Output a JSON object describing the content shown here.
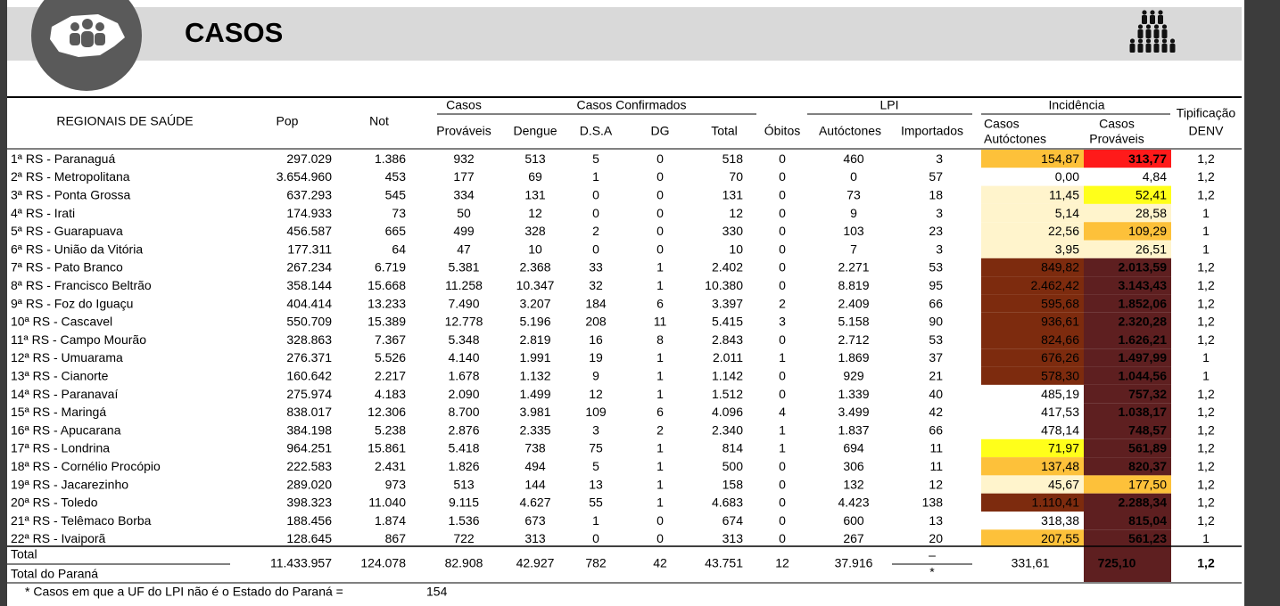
{
  "header": {
    "title": "CASOS"
  },
  "table": {
    "headings": [
      [
        "REGIONAIS DE SAÚDE"
      ],
      [
        "Pop"
      ],
      [
        "Not"
      ],
      [
        "Casos"
      ],
      [
        "Casos Confirmados"
      ],
      [
        "Óbitos"
      ],
      [
        "LPI"
      ],
      [
        "Incidência"
      ],
      [
        "Tipificação",
        "DENV"
      ],
      [
        "Prováveis"
      ],
      [
        "Dengue"
      ],
      [
        "D.S.A"
      ],
      [
        "DG"
      ],
      [
        "Total"
      ],
      [
        "Autóctones"
      ],
      [
        "Importados"
      ],
      [
        "Casos",
        "Autóctones"
      ],
      [
        "Casos",
        "Prováveis"
      ]
    ],
    "rows": [
      {
        "cells": [
          "1ª RS - Paranaguá",
          "297.029",
          "1.386",
          "932",
          "513",
          "5",
          "0",
          "518",
          "0",
          "460",
          "3",
          "154,87",
          "313,77",
          "1,2"
        ],
        "fills": [
          "#fdc13a",
          "#ff1a1a"
        ]
      },
      {
        "cells": [
          "2ª RS - Metropolitana",
          "3.654.960",
          "453",
          "177",
          "69",
          "1",
          "0",
          "70",
          "0",
          "0",
          "57",
          "0,00",
          "4,84",
          "1,2"
        ],
        "fills": [
          "#ffffff",
          "#ffffff"
        ]
      },
      {
        "cells": [
          "3ª RS - Ponta Grossa",
          "637.293",
          "545",
          "334",
          "131",
          "0",
          "0",
          "131",
          "0",
          "73",
          "18",
          "11,45",
          "52,41",
          "1,2"
        ],
        "fills": [
          "#fff4cc",
          "#ffff1a"
        ]
      },
      {
        "cells": [
          "4ª RS - Irati",
          "174.933",
          "73",
          "50",
          "12",
          "0",
          "0",
          "12",
          "0",
          "9",
          "3",
          "5,14",
          "28,58",
          "1"
        ],
        "fills": [
          "#fff4cc",
          "#fff4cc"
        ]
      },
      {
        "cells": [
          "5ª RS - Guarapuava",
          "456.587",
          "665",
          "499",
          "328",
          "2",
          "0",
          "330",
          "0",
          "103",
          "23",
          "22,56",
          "109,29",
          "1"
        ],
        "fills": [
          "#fff4cc",
          "#fdc13a"
        ]
      },
      {
        "cells": [
          "6ª RS - União da Vitória",
          "177.311",
          "64",
          "47",
          "10",
          "0",
          "0",
          "10",
          "0",
          "7",
          "3",
          "3,95",
          "26,51",
          "1"
        ],
        "fills": [
          "#fff4cc",
          "#fff4cc"
        ]
      },
      {
        "cells": [
          "7ª RS - Pato Branco",
          "267.234",
          "6.719",
          "5.381",
          "2.368",
          "33",
          "1",
          "2.402",
          "0",
          "2.271",
          "53",
          "849,82",
          "2.013,59",
          "1,2"
        ],
        "fills": [
          "#7d2b0e",
          "#5e1f20"
        ]
      },
      {
        "cells": [
          "8ª RS - Francisco Beltrão",
          "358.144",
          "15.668",
          "11.258",
          "10.347",
          "32",
          "1",
          "10.380",
          "0",
          "8.819",
          "95",
          "2.462,42",
          "3.143,43",
          "1,2"
        ],
        "fills": [
          "#7d2b0e",
          "#5e1f20"
        ]
      },
      {
        "cells": [
          "9ª RS - Foz do Iguaçu",
          "404.414",
          "13.233",
          "7.490",
          "3.207",
          "184",
          "6",
          "3.397",
          "2",
          "2.409",
          "66",
          "595,68",
          "1.852,06",
          "1,2"
        ],
        "fills": [
          "#7d2b0e",
          "#5e1f20"
        ]
      },
      {
        "cells": [
          "10ª RS - Cascavel",
          "550.709",
          "15.389",
          "12.778",
          "5.196",
          "208",
          "11",
          "5.415",
          "3",
          "5.158",
          "90",
          "936,61",
          "2.320,28",
          "1,2"
        ],
        "fills": [
          "#7d2b0e",
          "#5e1f20"
        ]
      },
      {
        "cells": [
          "11ª RS - Campo Mourão",
          "328.863",
          "7.367",
          "5.348",
          "2.819",
          "16",
          "8",
          "2.843",
          "0",
          "2.712",
          "53",
          "824,66",
          "1.626,21",
          "1,2"
        ],
        "fills": [
          "#7d2b0e",
          "#5e1f20"
        ]
      },
      {
        "cells": [
          "12ª RS - Umuarama",
          "276.371",
          "5.526",
          "4.140",
          "1.991",
          "19",
          "1",
          "2.011",
          "1",
          "1.869",
          "37",
          "676,26",
          "1.497,99",
          "1"
        ],
        "fills": [
          "#7d2b0e",
          "#5e1f20"
        ]
      },
      {
        "cells": [
          "13ª RS - Cianorte",
          "160.642",
          "2.217",
          "1.678",
          "1.132",
          "9",
          "1",
          "1.142",
          "0",
          "929",
          "21",
          "578,30",
          "1.044,56",
          "1"
        ],
        "fills": [
          "#7d2b0e",
          "#5e1f20"
        ]
      },
      {
        "cells": [
          "14ª RS - Paranavaí",
          "275.974",
          "4.183",
          "2.090",
          "1.499",
          "12",
          "1",
          "1.512",
          "0",
          "1.339",
          "40",
          "485,19",
          "757,32",
          "1,2"
        ],
        "fills": [
          "#ffffff",
          "#5e1f20"
        ]
      },
      {
        "cells": [
          "15ª RS - Maringá",
          "838.017",
          "12.306",
          "8.700",
          "3.981",
          "109",
          "6",
          "4.096",
          "4",
          "3.499",
          "42",
          "417,53",
          "1.038,17",
          "1,2"
        ],
        "fills": [
          "#ffffff",
          "#5e1f20"
        ]
      },
      {
        "cells": [
          "16ª RS - Apucarana",
          "384.198",
          "5.238",
          "2.876",
          "2.335",
          "3",
          "2",
          "2.340",
          "1",
          "1.837",
          "66",
          "478,14",
          "748,57",
          "1,2"
        ],
        "fills": [
          "#ffffff",
          "#5e1f20"
        ]
      },
      {
        "cells": [
          "17ª RS - Londrina",
          "964.251",
          "15.861",
          "5.418",
          "738",
          "75",
          "1",
          "814",
          "1",
          "694",
          "11",
          "71,97",
          "561,89",
          "1,2"
        ],
        "fills": [
          "#ffff1a",
          "#5e1f20"
        ]
      },
      {
        "cells": [
          "18ª RS - Cornélio Procópio",
          "222.583",
          "2.431",
          "1.826",
          "494",
          "5",
          "1",
          "500",
          "0",
          "306",
          "11",
          "137,48",
          "820,37",
          "1,2"
        ],
        "fills": [
          "#fdc13a",
          "#5e1f20"
        ]
      },
      {
        "cells": [
          "19ª RS - Jacarezinho",
          "289.020",
          "973",
          "513",
          "144",
          "13",
          "1",
          "158",
          "0",
          "132",
          "12",
          "45,67",
          "177,50",
          "1,2"
        ],
        "fills": [
          "#fff4cc",
          "#fdc13a"
        ]
      },
      {
        "cells": [
          "20ª RS - Toledo",
          "398.323",
          "11.040",
          "9.115",
          "4.627",
          "55",
          "1",
          "4.683",
          "0",
          "4.423",
          "138",
          "1.110,41",
          "2.288,34",
          "1,2"
        ],
        "fills": [
          "#7d2b0e",
          "#5e1f20"
        ]
      },
      {
        "cells": [
          "21ª RS - Telêmaco Borba",
          "188.456",
          "1.874",
          "1.536",
          "673",
          "1",
          "0",
          "674",
          "0",
          "600",
          "13",
          "318,38",
          "815,04",
          "1,2"
        ],
        "fills": [
          "#ffffff",
          "#5e1f20"
        ]
      },
      {
        "cells": [
          "22ª RS - Ivaiporã",
          "128.645",
          "867",
          "722",
          "313",
          "0",
          "0",
          "313",
          "0",
          "267",
          "20",
          "207,55",
          "561,23",
          "1"
        ],
        "fills": [
          "#fdc13a",
          "#5e1f20"
        ]
      }
    ],
    "total": {
      "labels": [
        "Total",
        "Total do Paraná"
      ],
      "cells": [
        "11.433.957",
        "124.078",
        "82.908",
        "42.927",
        "782",
        "42",
        "43.751",
        "12",
        "37.916",
        "–",
        "331,61",
        "725,10",
        "1,2"
      ],
      "mark": "*",
      "fills": [
        "#ffffff",
        "#5e1f20"
      ]
    }
  },
  "footnote": {
    "text": "* Casos em que a UF do LPI não é o Estado do Paraná =",
    "value": "154"
  }
}
